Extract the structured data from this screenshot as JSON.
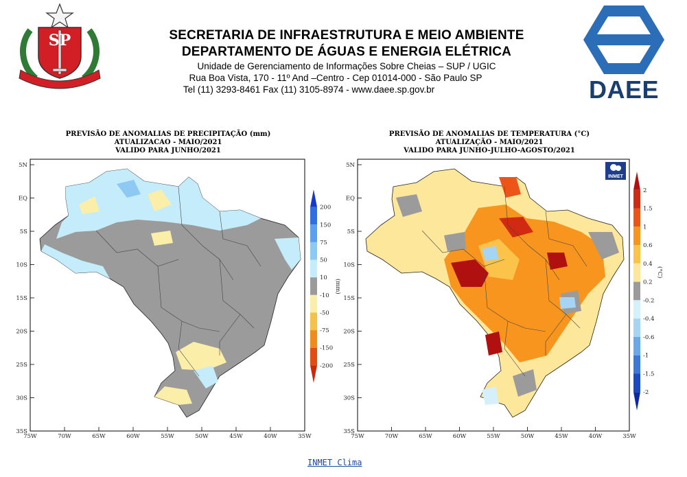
{
  "header": {
    "title_line1": "SECRETARIA DE INFRAESTRUTURA E MEIO AMBIENTE",
    "title_line2": "DEPARTAMENTO DE ÁGUAS E ENERGIA ELÉTRICA",
    "unit": "Unidade de Gerenciamento de Informações Sobre Cheias – SUP / UGIC",
    "address": "Rua Boa Vista, 170 - 11º And –Centro - Cep 01014-000 - São Paulo SP",
    "phone": "Tel (11) 3293-8461 Fax (11) 3105-8974 - www.daee.sp.gov.br",
    "seal_text": "SP",
    "daee_logo_text": "DAEE"
  },
  "maps": {
    "lat_ticks": [
      "5N",
      "EQ",
      "5S",
      "10S",
      "15S",
      "20S",
      "25S",
      "30S",
      "35S"
    ],
    "lon_ticks": [
      "75W",
      "70W",
      "65W",
      "60W",
      "55W",
      "50W",
      "45W",
      "40W",
      "35W"
    ],
    "precip": {
      "title_line1": "PREVISÃO DE ANOMALIAS DE PRECIPITAÇÃO (mm)",
      "title_line2": "ATUALIZACAO - MAIO/2021",
      "title_line3": "VALIDO PARA JUNHO/2021",
      "colorbar_unit": "(mm)",
      "colorbar_levels": [
        "200",
        "150",
        "75",
        "50",
        "10",
        "-10",
        "-50",
        "-75",
        "-150",
        "-200"
      ],
      "colorbar_colors": [
        "#1838c8",
        "#2f6fe0",
        "#5aa0ee",
        "#8ec9f3",
        "#c5ecfa",
        "#9b9b9b",
        "#fbeea8",
        "#f6c14a",
        "#f08c1c",
        "#e24e12",
        "#c82a0c"
      ]
    },
    "temp": {
      "title_line1": "PREVISÃO DE ANOMALIAS DE TEMPERATURA (°C)",
      "title_line2": "ATUALIZAÇÃO - MAIO/2021",
      "title_line3": "VALIDO PARA JUNHO-JULHO-AGOSTO/2021",
      "colorbar_unit": "(°C)",
      "colorbar_levels": [
        "2",
        "1.5",
        "1",
        "0.6",
        "0.4",
        "0.2",
        "-0.2",
        "-0.4",
        "-0.6",
        "-1",
        "-1.5",
        "-2"
      ],
      "colorbar_colors": [
        "#b01010",
        "#d02a12",
        "#ec5418",
        "#f8951e",
        "#fbc34a",
        "#fde79a",
        "#9b9b9b",
        "#d6f0fb",
        "#a6d4f4",
        "#6aa8ea",
        "#3c78d8",
        "#1c48c0",
        "#0c2aa0"
      ],
      "inmet_badge": "INMET"
    }
  },
  "footer": {
    "link_text": "INMET Clima"
  }
}
